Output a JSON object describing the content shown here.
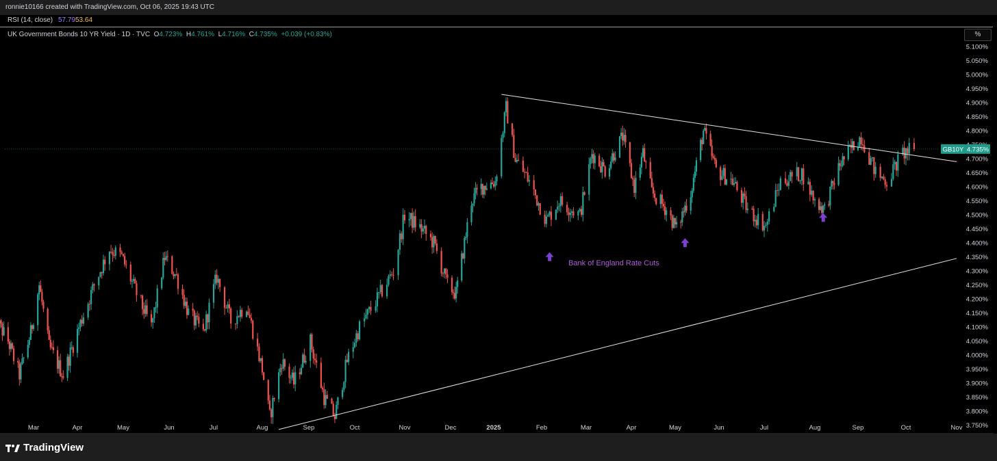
{
  "header": {
    "created_by": "ronnie10166 created with TradingView.com, Oct 06, 2025 19:43 UTC"
  },
  "rsi": {
    "label": "RSI (14, close)",
    "value1": "57.79",
    "value2": "53.64",
    "color1": "#9c7bff",
    "color2": "#f0c060"
  },
  "legend": {
    "symbol": "UK Government Bonds 10 YR Yield · 1D · TVC",
    "o_label": "O",
    "o_value": "4.723%",
    "h_label": "H",
    "h_value": "4.761%",
    "l_label": "L",
    "l_value": "4.716%",
    "c_label": "C",
    "c_value": "4.735%",
    "change": "+0.039 (+0.83%)"
  },
  "scale_button": "%",
  "footer": {
    "brand": "TradingView"
  },
  "colors": {
    "up": "#26a69a",
    "down": "#ef5350",
    "annotation": "#b05cd8",
    "arrow": "#7b3fd1",
    "price_tag": "#1e9b8a"
  },
  "chart_data": {
    "type": "candlestick",
    "symbol": "GB10Y",
    "last_price": "4.735%",
    "price_tag_label": "GB10Y",
    "y_ticks": [
      "5.100%",
      "5.050%",
      "5.000%",
      "4.950%",
      "4.900%",
      "4.850%",
      "4.800%",
      "4.750%",
      "4.700%",
      "4.650%",
      "4.600%",
      "4.550%",
      "4.500%",
      "4.450%",
      "4.400%",
      "4.350%",
      "4.300%",
      "4.250%",
      "4.200%",
      "4.150%",
      "4.100%",
      "4.050%",
      "4.000%",
      "3.950%",
      "3.900%",
      "3.850%",
      "3.800%",
      "3.750%"
    ],
    "ylim": [
      3.725,
      5.125
    ],
    "x_ticks": [
      "Mar",
      "Apr",
      "May",
      "Jun",
      "Jul",
      "Aug",
      "Sep",
      "Oct",
      "Nov",
      "Dec",
      "2025",
      "Feb",
      "Mar",
      "Apr",
      "May",
      "Jun",
      "Jul",
      "Aug",
      "Sep",
      "Oct",
      "Nov"
    ],
    "x_tick_dates": [
      "2024-03-01",
      "2024-04-01",
      "2024-05-01",
      "2024-06-01",
      "2024-07-01",
      "2024-08-01",
      "2024-09-01",
      "2024-10-01",
      "2024-11-01",
      "2024-12-01",
      "2025-01-01",
      "2025-02-01",
      "2025-03-01",
      "2025-04-01",
      "2025-05-01",
      "2025-06-01",
      "2025-07-01",
      "2025-08-01",
      "2025-09-01",
      "2025-10-01",
      "2025-11-01"
    ],
    "price_path": [
      [
        "2024-02-01",
        4.15
      ],
      [
        "2024-02-12",
        4.05
      ],
      [
        "2024-02-20",
        3.93
      ],
      [
        "2024-02-28",
        4.08
      ],
      [
        "2024-03-05",
        4.25
      ],
      [
        "2024-03-12",
        4.03
      ],
      [
        "2024-03-22",
        3.93
      ],
      [
        "2024-04-02",
        4.1
      ],
      [
        "2024-04-12",
        4.25
      ],
      [
        "2024-04-22",
        4.38
      ],
      [
        "2024-04-30",
        4.35
      ],
      [
        "2024-05-10",
        4.22
      ],
      [
        "2024-05-20",
        4.1
      ],
      [
        "2024-05-29",
        4.35
      ],
      [
        "2024-06-06",
        4.28
      ],
      [
        "2024-06-14",
        4.15
      ],
      [
        "2024-06-24",
        4.08
      ],
      [
        "2024-07-03",
        4.28
      ],
      [
        "2024-07-12",
        4.12
      ],
      [
        "2024-07-22",
        4.18
      ],
      [
        "2024-08-01",
        3.95
      ],
      [
        "2024-08-06",
        3.78
      ],
      [
        "2024-08-14",
        3.98
      ],
      [
        "2024-08-22",
        3.9
      ],
      [
        "2024-09-02",
        4.05
      ],
      [
        "2024-09-11",
        3.85
      ],
      [
        "2024-09-18",
        3.78
      ],
      [
        "2024-09-26",
        3.98
      ],
      [
        "2024-10-04",
        4.1
      ],
      [
        "2024-10-15",
        4.2
      ],
      [
        "2024-10-25",
        4.3
      ],
      [
        "2024-11-01",
        4.5
      ],
      [
        "2024-11-12",
        4.45
      ],
      [
        "2024-11-20",
        4.4
      ],
      [
        "2024-11-29",
        4.25
      ],
      [
        "2024-12-05",
        4.22
      ],
      [
        "2024-12-16",
        4.55
      ],
      [
        "2024-12-23",
        4.6
      ],
      [
        "2025-01-02",
        4.62
      ],
      [
        "2025-01-09",
        4.88
      ],
      [
        "2025-01-15",
        4.7
      ],
      [
        "2025-01-24",
        4.62
      ],
      [
        "2025-02-04",
        4.48
      ],
      [
        "2025-02-12",
        4.55
      ],
      [
        "2025-02-25",
        4.5
      ],
      [
        "2025-03-05",
        4.72
      ],
      [
        "2025-03-14",
        4.66
      ],
      [
        "2025-03-26",
        4.78
      ],
      [
        "2025-04-03",
        4.6
      ],
      [
        "2025-04-09",
        4.72
      ],
      [
        "2025-04-15",
        4.58
      ],
      [
        "2025-04-25",
        4.52
      ],
      [
        "2025-05-02",
        4.45
      ],
      [
        "2025-05-12",
        4.58
      ],
      [
        "2025-05-21",
        4.8
      ],
      [
        "2025-05-30",
        4.66
      ],
      [
        "2025-06-10",
        4.62
      ],
      [
        "2025-06-20",
        4.52
      ],
      [
        "2025-07-02",
        4.46
      ],
      [
        "2025-07-11",
        4.62
      ],
      [
        "2025-07-24",
        4.65
      ],
      [
        "2025-08-01",
        4.55
      ],
      [
        "2025-08-08",
        4.52
      ],
      [
        "2025-08-19",
        4.68
      ],
      [
        "2025-08-29",
        4.75
      ],
      [
        "2025-09-03",
        4.78
      ],
      [
        "2025-09-12",
        4.65
      ],
      [
        "2025-09-19",
        4.62
      ],
      [
        "2025-09-29",
        4.72
      ],
      [
        "2025-10-06",
        4.735
      ]
    ],
    "trendlines": [
      {
        "name": "upper",
        "start": [
          "2025-01-06",
          4.93
        ],
        "end": [
          "2025-11-01",
          4.69
        ]
      },
      {
        "name": "lower",
        "start": [
          "2024-08-12",
          3.735
        ],
        "end": [
          "2025-11-01",
          4.345
        ]
      }
    ],
    "annotations": [
      {
        "text": "Bank of England Rate Cuts",
        "date": "2025-03-20",
        "price": 4.33
      }
    ],
    "arrows": [
      {
        "date": "2025-02-06",
        "price": 4.35
      },
      {
        "date": "2025-05-08",
        "price": 4.4
      },
      {
        "date": "2025-08-07",
        "price": 4.49
      }
    ]
  }
}
